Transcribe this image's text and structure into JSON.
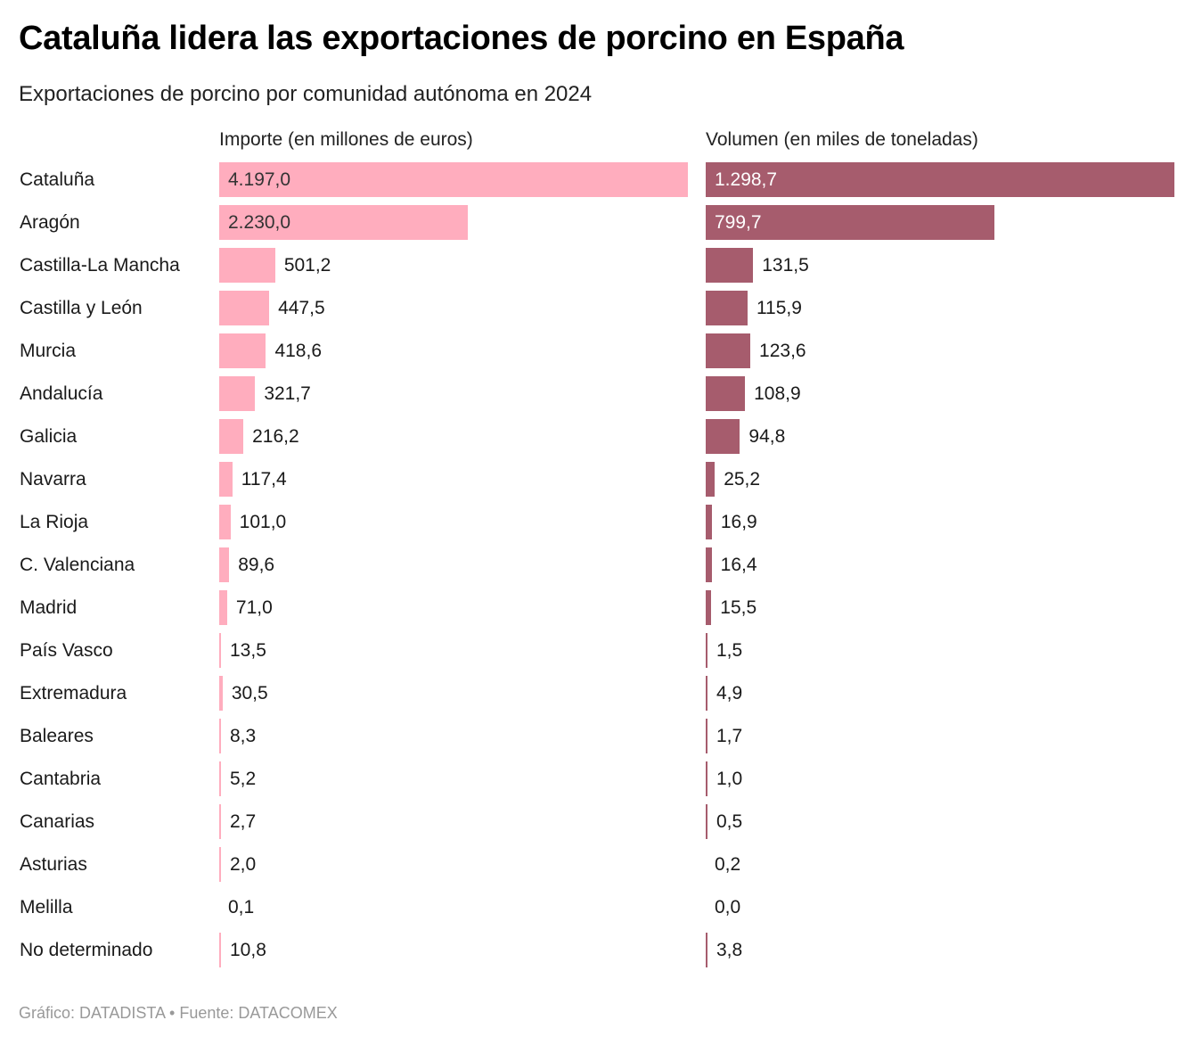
{
  "title": "Cataluña lidera las exportaciones de porcino en España",
  "subtitle": "Exportaciones de porcino por comunidad autónoma en 2024",
  "footer": "Gráfico: DATADISTA • Fuente: DATACOMEX",
  "colors": {
    "importe": "#ffadbe",
    "volumen": "#a65c6d"
  },
  "chart_data": {
    "type": "bar",
    "orientation": "horizontal",
    "categories": [
      "Cataluña",
      "Aragón",
      "Castilla-La Mancha",
      "Castilla y León",
      "Murcia",
      "Andalucía",
      "Galicia",
      "Navarra",
      "La Rioja",
      "C. Valenciana",
      "Madrid",
      "País Vasco",
      "Extremadura",
      "Baleares",
      "Cantabria",
      "Canarias",
      "Asturias",
      "Melilla",
      "No determinado"
    ],
    "series": [
      {
        "name": "Importe (en millones de euros)",
        "values": [
          4197.0,
          2230.0,
          501.2,
          447.5,
          418.6,
          321.7,
          216.2,
          117.4,
          101.0,
          89.6,
          71.0,
          13.5,
          30.5,
          8.3,
          5.2,
          2.7,
          2.0,
          0.1,
          10.8
        ],
        "labels": [
          "4.197,0",
          "2.230,0",
          "501,2",
          "447,5",
          "418,6",
          "321,7",
          "216,2",
          "117,4",
          "101,0",
          "89,6",
          "71,0",
          "13,5",
          "30,5",
          "8,3",
          "5,2",
          "2,7",
          "2,0",
          "0,1",
          "10,8"
        ]
      },
      {
        "name": "Volumen (en miles de toneladas)",
        "values": [
          1298.7,
          799.7,
          131.5,
          115.9,
          123.6,
          108.9,
          94.8,
          25.2,
          16.9,
          16.4,
          15.5,
          1.5,
          4.9,
          1.7,
          1.0,
          0.5,
          0.2,
          0.0,
          3.8
        ],
        "labels": [
          "1.298,7",
          "799,7",
          "131,5",
          "115,9",
          "123,6",
          "108,9",
          "94,8",
          "25,2",
          "16,9",
          "16,4",
          "15,5",
          "1,5",
          "4,9",
          "1,7",
          "1,0",
          "0,5",
          "0,2",
          "0,0",
          "3,8"
        ]
      }
    ]
  }
}
